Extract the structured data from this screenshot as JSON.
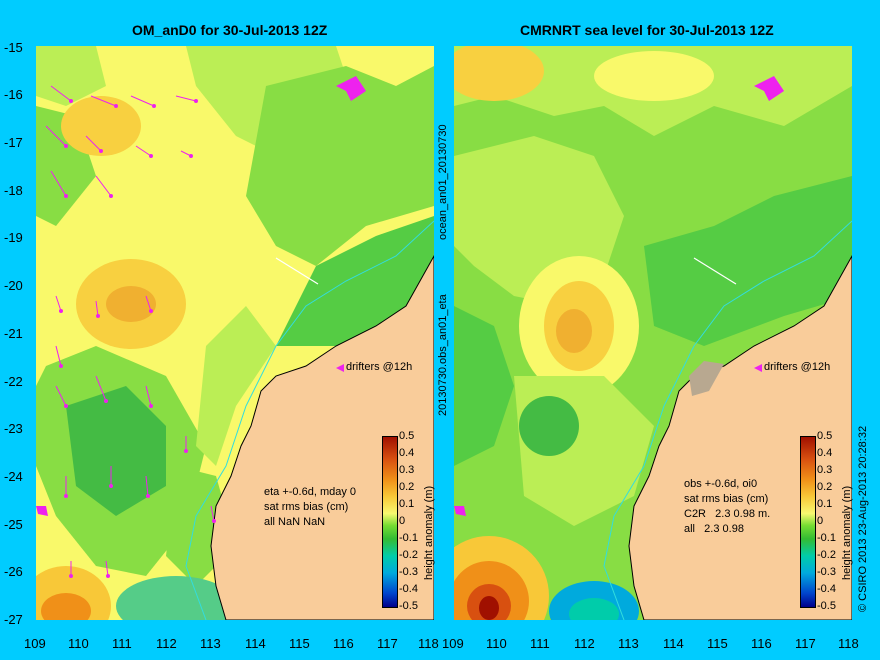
{
  "left_panel": {
    "title": "OM_anD0 for 30-Jul-2013 12Z",
    "drifters_label": "drifters @12h",
    "stats": [
      "eta +-0.6d, mday 0",
      "sat rms bias (cm)",
      "all NaN NaN"
    ]
  },
  "right_panel": {
    "title": "CMRNRT sea level  for 30-Jul-2013 12Z",
    "drifters_label": "drifters @12h",
    "stats": [
      "obs +-0.6d, oi0",
      "sat rms bias (cm)",
      "C2R   2.3 0.98 m.",
      "all   2.3 0.98"
    ]
  },
  "y_ticks": [
    "-15",
    "-16",
    "-17",
    "-18",
    "-19",
    "-20",
    "-21",
    "-22",
    "-23",
    "-24",
    "-25",
    "-26",
    "-27"
  ],
  "x_ticks": [
    "109",
    "110",
    "111",
    "112",
    "113",
    "114",
    "115",
    "116",
    "117",
    "118"
  ],
  "colorbar": {
    "label": "height anomaly (m)",
    "ticks": [
      "0.5",
      "0.4",
      "0.3",
      "0.2",
      "0.1",
      "0",
      "-0.1",
      "-0.2",
      "-0.3",
      "-0.4",
      "-0.5"
    ]
  },
  "middle_label": "20130730.obs_an01_eta",
  "middle_label_top": "ocean_an01_20130730",
  "credit": "© CSIRO 2013   23-Aug-2013 20:28:32",
  "colors": {
    "background": "#00ccff",
    "land": "#f9cc9a",
    "drifter": "#ee22ee",
    "green": "#33cc33"
  }
}
